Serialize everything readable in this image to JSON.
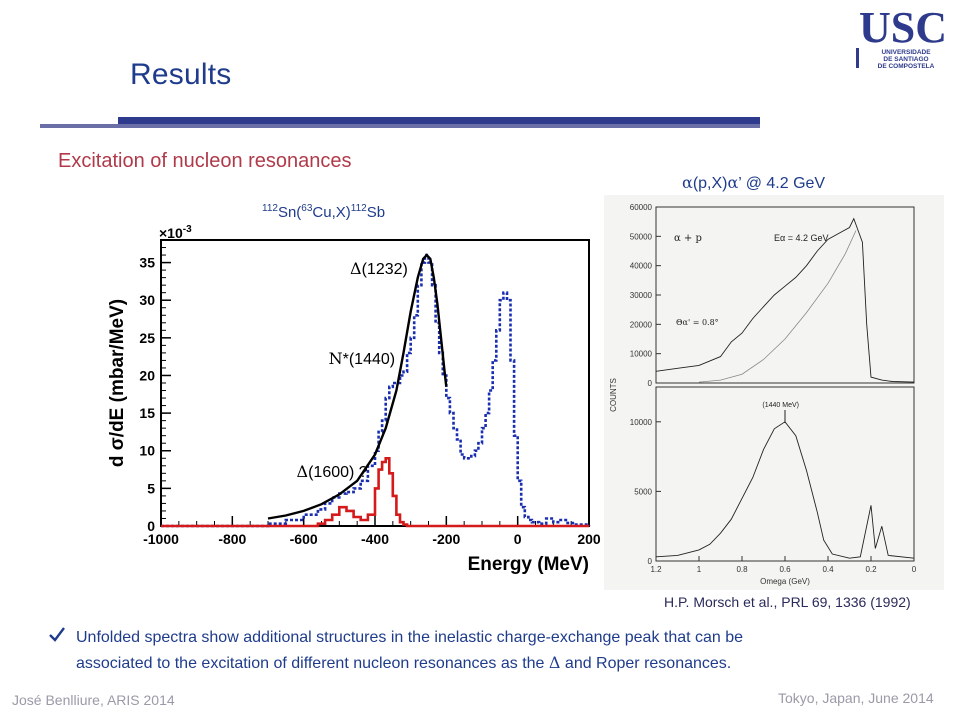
{
  "slide": {
    "title": "Results",
    "subtitle": "Excitation of nucleon resonances",
    "logo": {
      "text": "USC",
      "lines": [
        "UNIVERSIDADE",
        "DE SANTIAGO",
        "DE COMPOSTELA"
      ],
      "color": "#2e3a8c"
    },
    "left_chart_title": {
      "mass1": "112",
      "el1": "Sn(",
      "mass2": "63",
      "el2": "Cu,X)",
      "mass3": "112",
      "el3": "Sb"
    },
    "right_chart_title": {
      "a": "α",
      "b": "(p,X)",
      "c": "α",
      "d": "’ @ 4.2 GeV"
    },
    "citation": "H.P. Morsch et al., PRL 69, 1336 (1992)",
    "bullet": {
      "line1": "Unfolded spectra show additional structures in the inelastic charge-exchange peak that can be",
      "line2a": "associated to the excitation of different nucleon resonances as the ",
      "delta": "Δ",
      "line2b": " and Roper resonances."
    },
    "footer_left": "José Benlliure, ARIS 2014",
    "footer_right": "Tokyo, Japan, June 2014",
    "colors": {
      "title": "#1f3c8c",
      "subtitle": "#b03a4a",
      "blue_dotted": "#1a2fb0",
      "red": "#d41a1a",
      "fit": "#000000"
    }
  },
  "chart_data": [
    {
      "type": "line",
      "xlabel": "Energy (MeV)",
      "ylabel": "d σ/dE (mbar/MeV)",
      "y_multiplier": "×10-3",
      "xlim": [
        -1000,
        200
      ],
      "ylim": [
        0,
        38
      ],
      "xticks": [
        -1000,
        -800,
        -600,
        -400,
        -200,
        0,
        200
      ],
      "yticks": [
        0,
        5,
        10,
        15,
        20,
        25,
        30,
        35
      ],
      "annotations": [
        {
          "text": "Δ(1232)",
          "x": -470,
          "y": 33.5
        },
        {
          "text": "N*(1440)",
          "x": -530,
          "y": 21.5
        },
        {
          "text": "Δ(1600) ?",
          "x": -620,
          "y": 6.5
        }
      ],
      "series": [
        {
          "style": "dotted-step",
          "color": "#1a2fb0",
          "x": [
            -1000,
            -700,
            -650,
            -600,
            -560,
            -540,
            -520,
            -500,
            -480,
            -460,
            -440,
            -420,
            -400,
            -390,
            -380,
            -370,
            -360,
            -350,
            -340,
            -330,
            -320,
            -310,
            -300,
            -290,
            -280,
            -270,
            -260,
            -250,
            -240,
            -230,
            -220,
            -210,
            -200,
            -190,
            -180,
            -170,
            -160,
            -150,
            -140,
            -130,
            -120,
            -110,
            -100,
            -90,
            -80,
            -70,
            -60,
            -50,
            -40,
            -30,
            -20,
            -10,
            0,
            10,
            20,
            30,
            40,
            60,
            80,
            100,
            120,
            140,
            160,
            200
          ],
          "y": [
            0,
            0.3,
            0.8,
            1.5,
            2.2,
            3,
            3.8,
            4.3,
            4.5,
            5,
            6,
            8,
            10,
            12.5,
            14,
            17,
            18.5,
            19,
            19,
            20,
            20.5,
            23,
            25,
            28,
            32,
            35,
            36,
            35,
            32,
            27,
            23,
            20,
            17,
            15,
            13,
            11.5,
            9.5,
            9,
            9,
            9.3,
            10,
            11,
            13,
            15,
            18,
            22,
            26,
            30,
            31,
            30,
            22,
            12,
            6,
            2.5,
            1.2,
            0.8,
            0.5,
            0.3,
            1,
            0.5,
            0.8,
            0.4,
            0.2,
            0
          ]
        },
        {
          "style": "step",
          "color": "#d41a1a",
          "x": [
            -1000,
            -600,
            -560,
            -540,
            -520,
            -500,
            -480,
            -460,
            -440,
            -420,
            -400,
            -390,
            -380,
            -370,
            -360,
            -350,
            -340,
            -330,
            -320,
            -310,
            -300,
            200
          ],
          "y": [
            0,
            0,
            0.3,
            0.8,
            1.5,
            2.5,
            2,
            1.2,
            0.8,
            1.5,
            5,
            7.5,
            8.5,
            9,
            7,
            4,
            1.5,
            0.5,
            0.2,
            0,
            0,
            0
          ]
        },
        {
          "style": "smooth",
          "color": "#000000",
          "x": [
            -700,
            -650,
            -600,
            -550,
            -500,
            -450,
            -400,
            -370,
            -340,
            -320,
            -300,
            -280,
            -265,
            -255,
            -245,
            -235,
            -225,
            -215,
            -205,
            -200
          ],
          "y": [
            1,
            1.4,
            2,
            2.9,
            4.2,
            6,
            9.5,
            13,
            18,
            23,
            28.5,
            33,
            35.5,
            36,
            35.5,
            33,
            29.5,
            25,
            20.5,
            18.5
          ]
        }
      ]
    },
    {
      "type": "line",
      "image_panel": true,
      "top": {
        "xlim": [
          1.2,
          0
        ],
        "ylim": [
          0,
          60000
        ],
        "yticks": [
          0,
          10000,
          20000,
          30000,
          40000,
          50000,
          60000
        ],
        "inset_label": "α + p",
        "energy_label": "Eα = 4.2 GeV",
        "angle_label": "Θα' = 0.8°"
      },
      "bottom": {
        "xlabel": "Omega (GeV)",
        "ylim": [
          0,
          12500
        ],
        "yticks": [
          0,
          5000,
          10000
        ],
        "xticks": [
          1.2,
          1.0,
          0.8,
          0.6,
          0.4,
          0.2,
          0
        ],
        "arrow_label": "(1440 MeV)"
      },
      "ylabel": "COUNTS"
    }
  ]
}
